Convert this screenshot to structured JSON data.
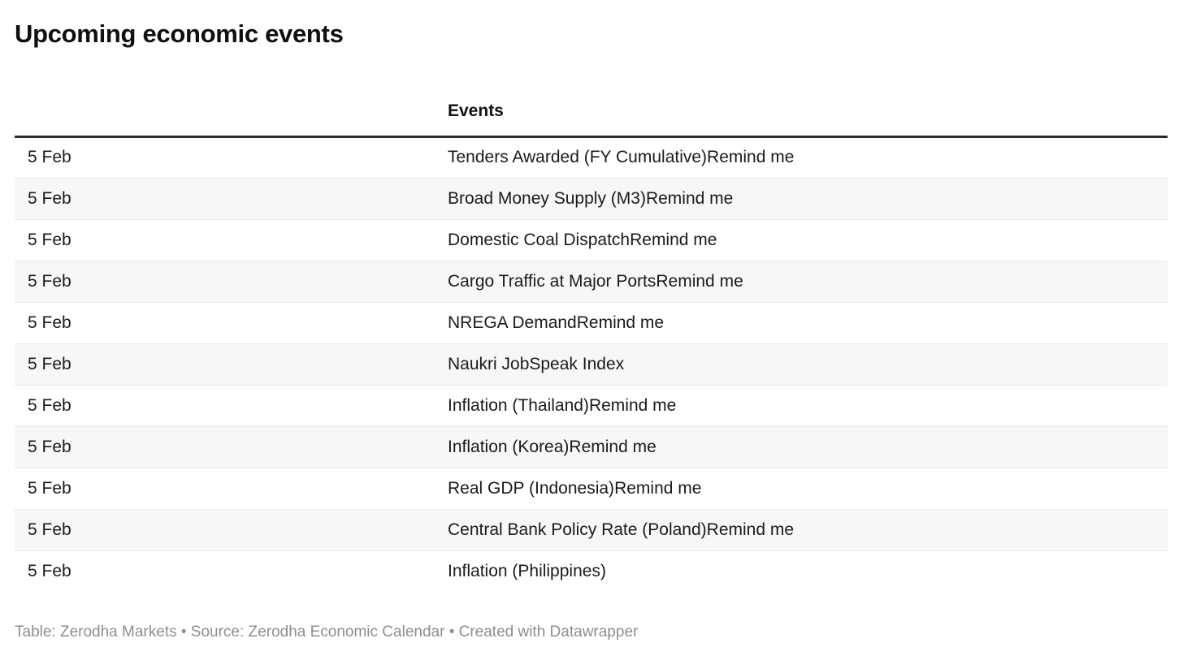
{
  "header": {
    "title": "Upcoming economic events"
  },
  "table": {
    "date_column_header": "",
    "events_column_header": "Events",
    "rows": [
      {
        "date": "5 Feb",
        "event": "Tenders Awarded (FY Cumulative)",
        "remind": "Remind me"
      },
      {
        "date": "5 Feb",
        "event": "Broad Money Supply (M3)",
        "remind": "Remind me"
      },
      {
        "date": "5 Feb",
        "event": "Domestic Coal Dispatch",
        "remind": "Remind me"
      },
      {
        "date": "5 Feb",
        "event": "Cargo Traffic at Major Ports",
        "remind": "Remind me"
      },
      {
        "date": "5 Feb",
        "event": "NREGA Demand",
        "remind": "Remind me"
      },
      {
        "date": "5 Feb",
        "event": "Naukri JobSpeak Index",
        "remind": ""
      },
      {
        "date": "5 Feb",
        "event": "Inflation (Thailand)",
        "remind": "Remind me"
      },
      {
        "date": "5 Feb",
        "event": "Inflation (Korea)",
        "remind": "Remind me"
      },
      {
        "date": "5 Feb",
        "event": "Real GDP (Indonesia)",
        "remind": "Remind me"
      },
      {
        "date": "5 Feb",
        "event": "Central Bank Policy Rate (Poland)",
        "remind": "Remind me"
      },
      {
        "date": "5 Feb",
        "event": "Inflation (Philippines)",
        "remind": ""
      }
    ]
  },
  "footer": {
    "attribution": "Table: Zerodha Markets • Source: Zerodha Economic Calendar • Created with Datawrapper"
  },
  "colors": {
    "title_text": "#0f0f0f",
    "body_text": "#1a1a1a",
    "header_rule": "#2b2b2b",
    "row_stripe": "#f7f7f7",
    "row_border": "#e8e8e8",
    "footer_text": "#8e8e8e",
    "background": "#ffffff"
  },
  "chart_data": {
    "type": "table",
    "title": "Upcoming economic events",
    "columns": [
      "",
      "Events"
    ],
    "rows": [
      [
        "5 Feb",
        "Tenders Awarded (FY Cumulative)Remind me"
      ],
      [
        "5 Feb",
        "Broad Money Supply (M3)Remind me"
      ],
      [
        "5 Feb",
        "Domestic Coal DispatchRemind me"
      ],
      [
        "5 Feb",
        "Cargo Traffic at Major PortsRemind me"
      ],
      [
        "5 Feb",
        "NREGA DemandRemind me"
      ],
      [
        "5 Feb",
        "Naukri JobSpeak Index"
      ],
      [
        "5 Feb",
        "Inflation (Thailand)Remind me"
      ],
      [
        "5 Feb",
        "Inflation (Korea)Remind me"
      ],
      [
        "5 Feb",
        "Real GDP (Indonesia)Remind me"
      ],
      [
        "5 Feb",
        "Central Bank Policy Rate (Poland)Remind me"
      ],
      [
        "5 Feb",
        "Inflation (Philippines)"
      ]
    ],
    "layout": {
      "striped_rows": true,
      "stripe_on": "even",
      "footer": "Table: Zerodha Markets • Source: Zerodha Economic Calendar • Created with Datawrapper"
    }
  }
}
